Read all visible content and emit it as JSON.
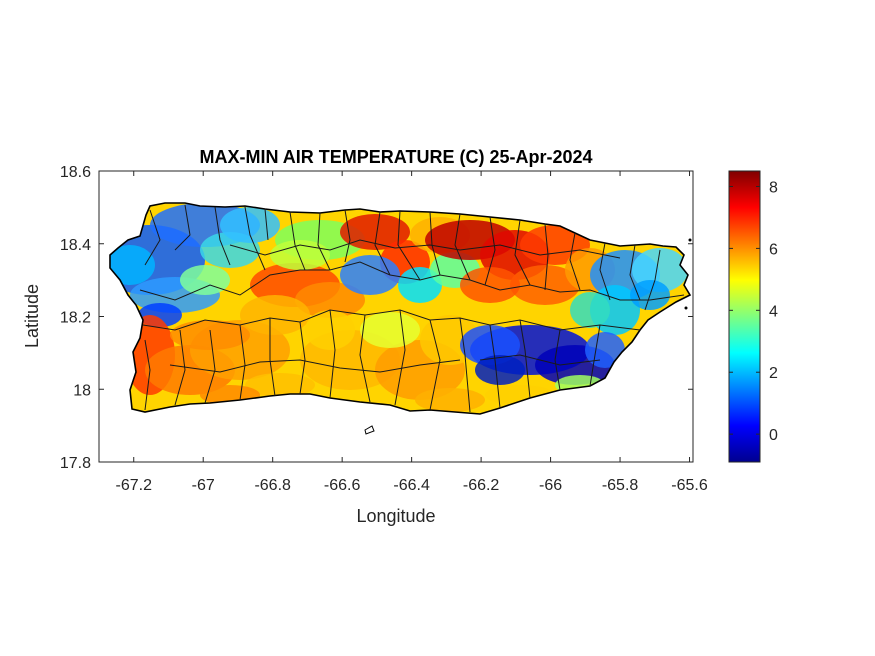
{
  "title": "MAX-MIN AIR TEMPERATURE (C) 25-Apr-2024",
  "xlabel": "Longitude",
  "ylabel": "Latitude",
  "x_ticks": [
    "-67.2",
    "-67",
    "-66.8",
    "-66.6",
    "-66.4",
    "-66.2",
    "-66",
    "-65.8",
    "-65.6"
  ],
  "y_ticks": [
    "18.6",
    "18.4",
    "18.2",
    "18",
    "17.8"
  ],
  "colorbar_ticks": [
    "8",
    "6",
    "4",
    "2",
    "0"
  ],
  "map": {
    "lon_range": [
      -67.3,
      -65.59
    ],
    "lat_range": [
      17.8,
      18.6
    ],
    "colormap": "jet",
    "value_range": [
      -0.9,
      8.5
    ],
    "region": "Puerto Rico",
    "colors": {
      "coast": "#000000",
      "municipal_borders": "#1a1a1a"
    }
  }
}
